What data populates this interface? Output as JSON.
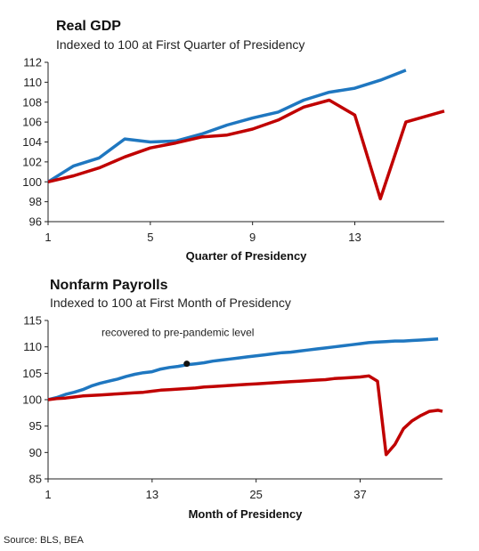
{
  "chart_data": [
    {
      "type": "line",
      "title": "Real GDP",
      "subtitle": "Indexed to 100 at First Quarter of Presidency",
      "xlabel": "Quarter of Presidency",
      "ylabel": "",
      "xlim": [
        1,
        16.5
      ],
      "ylim": [
        96,
        112
      ],
      "x_ticks": [
        1,
        5,
        9,
        13
      ],
      "y_ticks": [
        96,
        98,
        100,
        102,
        104,
        106,
        108,
        110,
        112
      ],
      "grid": false,
      "colors": [
        "#1f77c0",
        "#c00000"
      ],
      "series": [
        {
          "x": [
            1,
            2,
            3,
            4,
            5,
            6,
            7,
            8,
            9,
            10,
            11,
            12,
            13,
            14,
            15
          ],
          "values": [
            100,
            101.6,
            102.4,
            104.3,
            104.0,
            104.1,
            104.8,
            105.7,
            106.4,
            107.0,
            108.2,
            109.0,
            109.4,
            110.2,
            111.2
          ]
        },
        {
          "x": [
            1,
            2,
            3,
            4,
            5,
            6,
            7,
            8,
            9,
            10,
            11,
            12,
            13,
            14,
            15,
            16.5
          ],
          "values": [
            100,
            100.6,
            101.4,
            102.5,
            103.4,
            103.9,
            104.5,
            104.7,
            105.3,
            106.2,
            107.5,
            108.2,
            106.7,
            98.3,
            106.0,
            107.1
          ]
        }
      ]
    },
    {
      "type": "line",
      "title": "Nonfarm Payrolls",
      "subtitle": "Indexed to 100 at First Month of Presidency",
      "xlabel": "Month of Presidency",
      "ylabel": "",
      "xlim": [
        1,
        46.5
      ],
      "ylim": [
        85,
        115
      ],
      "x_ticks": [
        1,
        13,
        25,
        37
      ],
      "y_ticks": [
        85,
        90,
        95,
        100,
        105,
        110,
        115
      ],
      "grid": false,
      "colors": [
        "#1f77c0",
        "#c00000"
      ],
      "annotation": {
        "text": "recovered to pre-pandemic level",
        "x": 17,
        "y": 106.8
      },
      "series": [
        {
          "x": [
            1,
            2,
            3,
            4,
            5,
            6,
            7,
            8,
            9,
            10,
            11,
            12,
            13,
            14,
            15,
            16,
            17,
            18,
            19,
            20,
            21,
            22,
            23,
            24,
            25,
            26,
            27,
            28,
            29,
            30,
            31,
            32,
            33,
            34,
            35,
            36,
            37,
            38,
            39,
            40,
            41,
            42,
            43,
            44,
            45,
            46
          ],
          "values": [
            100,
            100.4,
            101.0,
            101.4,
            101.9,
            102.6,
            103.1,
            103.5,
            103.9,
            104.4,
            104.8,
            105.1,
            105.3,
            105.8,
            106.1,
            106.3,
            106.6,
            106.8,
            107.0,
            107.3,
            107.5,
            107.7,
            107.9,
            108.1,
            108.3,
            108.5,
            108.7,
            108.9,
            109.0,
            109.2,
            109.4,
            109.6,
            109.8,
            110.0,
            110.2,
            110.4,
            110.6,
            110.8,
            110.9,
            111.0,
            111.1,
            111.1,
            111.2,
            111.3,
            111.4,
            111.5
          ]
        },
        {
          "x": [
            1,
            2,
            3,
            4,
            5,
            6,
            7,
            8,
            9,
            10,
            11,
            12,
            13,
            14,
            15,
            16,
            17,
            18,
            19,
            20,
            21,
            22,
            23,
            24,
            25,
            26,
            27,
            28,
            29,
            30,
            31,
            32,
            33,
            34,
            35,
            36,
            37,
            38,
            39,
            40,
            41,
            42,
            43,
            44,
            45,
            46,
            46.5
          ],
          "values": [
            100,
            100.2,
            100.3,
            100.5,
            100.7,
            100.8,
            100.9,
            101.0,
            101.1,
            101.2,
            101.3,
            101.4,
            101.6,
            101.8,
            101.9,
            102.0,
            102.1,
            102.2,
            102.4,
            102.5,
            102.6,
            102.7,
            102.8,
            102.9,
            103.0,
            103.1,
            103.2,
            103.3,
            103.4,
            103.5,
            103.6,
            103.7,
            103.8,
            104.0,
            104.1,
            104.2,
            104.3,
            104.5,
            103.5,
            89.6,
            91.5,
            94.5,
            96.0,
            97.0,
            97.8,
            98.0,
            97.8
          ]
        }
      ]
    }
  ],
  "source": "Source: BLS, BEA"
}
